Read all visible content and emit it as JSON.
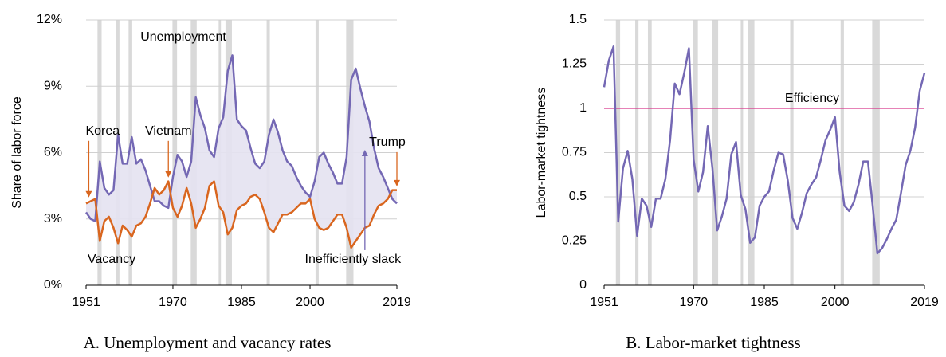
{
  "chart_data": [
    {
      "type": "line",
      "caption": "A. Unemployment and vacancy rates",
      "y_label": "Share of labor force",
      "x": [
        1951,
        1952,
        1953,
        1954,
        1955,
        1956,
        1957,
        1958,
        1959,
        1960,
        1961,
        1962,
        1963,
        1964,
        1965,
        1966,
        1967,
        1968,
        1969,
        1970,
        1971,
        1972,
        1973,
        1974,
        1975,
        1976,
        1977,
        1978,
        1979,
        1980,
        1981,
        1982,
        1983,
        1984,
        1985,
        1986,
        1987,
        1988,
        1989,
        1990,
        1991,
        1992,
        1993,
        1994,
        1995,
        1996,
        1997,
        1998,
        1999,
        2000,
        2001,
        2002,
        2003,
        2004,
        2005,
        2006,
        2007,
        2008,
        2009,
        2010,
        2011,
        2012,
        2013,
        2014,
        2015,
        2016,
        2017,
        2018,
        2019
      ],
      "series": [
        {
          "name": "Unemployment",
          "color": "#7468b4",
          "values": [
            3.3,
            3.0,
            2.9,
            5.6,
            4.4,
            4.1,
            4.3,
            6.8,
            5.5,
            5.5,
            6.7,
            5.5,
            5.7,
            5.2,
            4.5,
            3.8,
            3.8,
            3.6,
            3.5,
            4.9,
            5.9,
            5.6,
            4.9,
            5.6,
            8.5,
            7.7,
            7.1,
            6.1,
            5.8,
            7.1,
            7.6,
            9.7,
            10.4,
            7.5,
            7.2,
            7.0,
            6.2,
            5.5,
            5.3,
            5.6,
            6.8,
            7.5,
            6.9,
            6.1,
            5.6,
            5.4,
            4.9,
            4.5,
            4.2,
            4.0,
            4.7,
            5.8,
            6.0,
            5.5,
            5.1,
            4.6,
            4.6,
            5.8,
            9.3,
            9.8,
            8.9,
            8.1,
            7.4,
            6.2,
            5.3,
            4.9,
            4.4,
            3.9,
            3.7
          ]
        },
        {
          "name": "Vacancy",
          "color": "#d9661f",
          "values": [
            3.7,
            3.8,
            3.9,
            2.0,
            2.9,
            3.1,
            2.6,
            1.9,
            2.7,
            2.5,
            2.2,
            2.7,
            2.8,
            3.1,
            3.7,
            4.4,
            4.1,
            4.3,
            4.7,
            3.5,
            3.1,
            3.6,
            4.4,
            3.7,
            2.6,
            3.0,
            3.5,
            4.5,
            4.7,
            3.6,
            3.3,
            2.3,
            2.6,
            3.4,
            3.6,
            3.7,
            4.0,
            4.1,
            3.9,
            3.3,
            2.6,
            2.4,
            2.8,
            3.2,
            3.2,
            3.3,
            3.5,
            3.7,
            3.7,
            3.9,
            3.0,
            2.6,
            2.5,
            2.6,
            2.9,
            3.2,
            3.2,
            2.6,
            1.7,
            2.0,
            2.3,
            2.6,
            2.7,
            3.2,
            3.6,
            3.7,
            3.9,
            4.3,
            4.3
          ]
        }
      ],
      "fill_color": "#e4e2f1",
      "xlim": [
        1951,
        2019
      ],
      "xticks": [
        1951,
        1970,
        1985,
        2000,
        2019
      ],
      "ylim": [
        0,
        12
      ],
      "yticks": [
        {
          "value": 0,
          "label": "0%"
        },
        {
          "value": 3,
          "label": "3%"
        },
        {
          "value": 6,
          "label": "6%"
        },
        {
          "value": 9,
          "label": "9%"
        },
        {
          "value": 12,
          "label": "12%"
        }
      ],
      "grid": true,
      "recessions": [
        [
          1953.5,
          1954.4
        ],
        [
          1957.6,
          1958.3
        ],
        [
          1960.3,
          1961.1
        ],
        [
          1969.9,
          1970.9
        ],
        [
          1973.9,
          1975.2
        ],
        [
          1980.0,
          1980.5
        ],
        [
          1981.5,
          1982.9
        ],
        [
          1990.5,
          1991.2
        ],
        [
          2001.2,
          2001.9
        ],
        [
          2007.9,
          2009.5
        ]
      ],
      "recession_color": "#d9d9d9",
      "annotations": [
        {
          "text": "Korea",
          "x": 1951.6,
          "y": 3.9,
          "color": "#d9661f"
        },
        {
          "text": "Vietnam",
          "x": 1969,
          "y": 4.8,
          "color": "#d9661f"
        },
        {
          "text": "Trump",
          "x": 2019,
          "y": 4.4,
          "color": "#d9661f"
        },
        {
          "text": "Inefficiently slack",
          "x": 2012,
          "y": 6.2,
          "color": "#7468b4"
        }
      ]
    },
    {
      "type": "line",
      "caption": "B. Labor-market tightness",
      "y_label": "Labor-market tightness",
      "x": [
        1951,
        1952,
        1953,
        1954,
        1955,
        1956,
        1957,
        1958,
        1959,
        1960,
        1961,
        1962,
        1963,
        1964,
        1965,
        1966,
        1967,
        1968,
        1969,
        1970,
        1971,
        1972,
        1973,
        1974,
        1975,
        1976,
        1977,
        1978,
        1979,
        1980,
        1981,
        1982,
        1983,
        1984,
        1985,
        1986,
        1987,
        1988,
        1989,
        1990,
        1991,
        1992,
        1993,
        1994,
        1995,
        1996,
        1997,
        1998,
        1999,
        2000,
        2001,
        2002,
        2003,
        2004,
        2005,
        2006,
        2007,
        2008,
        2009,
        2010,
        2011,
        2012,
        2013,
        2014,
        2015,
        2016,
        2017,
        2018,
        2019
      ],
      "series": [
        {
          "name": "Labor-market tightness",
          "color": "#7468b4",
          "values": [
            1.12,
            1.27,
            1.35,
            0.36,
            0.66,
            0.76,
            0.6,
            0.28,
            0.49,
            0.45,
            0.33,
            0.49,
            0.49,
            0.6,
            0.82,
            1.14,
            1.08,
            1.2,
            1.34,
            0.71,
            0.53,
            0.64,
            0.9,
            0.66,
            0.31,
            0.39,
            0.49,
            0.74,
            0.81,
            0.51,
            0.43,
            0.24,
            0.27,
            0.45,
            0.5,
            0.53,
            0.65,
            0.75,
            0.74,
            0.59,
            0.38,
            0.32,
            0.41,
            0.52,
            0.57,
            0.61,
            0.71,
            0.82,
            0.88,
            0.95,
            0.64,
            0.45,
            0.42,
            0.47,
            0.57,
            0.7,
            0.7,
            0.45,
            0.18,
            0.21,
            0.26,
            0.32,
            0.37,
            0.52,
            0.68,
            0.76,
            0.89,
            1.1,
            1.2
          ]
        }
      ],
      "xlim": [
        1951,
        2019
      ],
      "xticks": [
        1951,
        1970,
        1985,
        2000,
        2019
      ],
      "ylim": [
        0,
        1.5
      ],
      "yticks": [
        0,
        0.25,
        0.5,
        0.75,
        1,
        1.25,
        1.5
      ],
      "grid": true,
      "reference_line": {
        "value": 1,
        "label": "Efficiency",
        "color": "#d6378c"
      },
      "recessions": [
        [
          1953.5,
          1954.4
        ],
        [
          1957.6,
          1958.3
        ],
        [
          1960.3,
          1961.1
        ],
        [
          1969.9,
          1970.9
        ],
        [
          1973.9,
          1975.2
        ],
        [
          1980.0,
          1980.5
        ],
        [
          1981.5,
          1982.9
        ],
        [
          1990.5,
          1991.2
        ],
        [
          2001.2,
          2001.9
        ],
        [
          2007.9,
          2009.5
        ]
      ],
      "recession_color": "#d9d9d9"
    }
  ]
}
